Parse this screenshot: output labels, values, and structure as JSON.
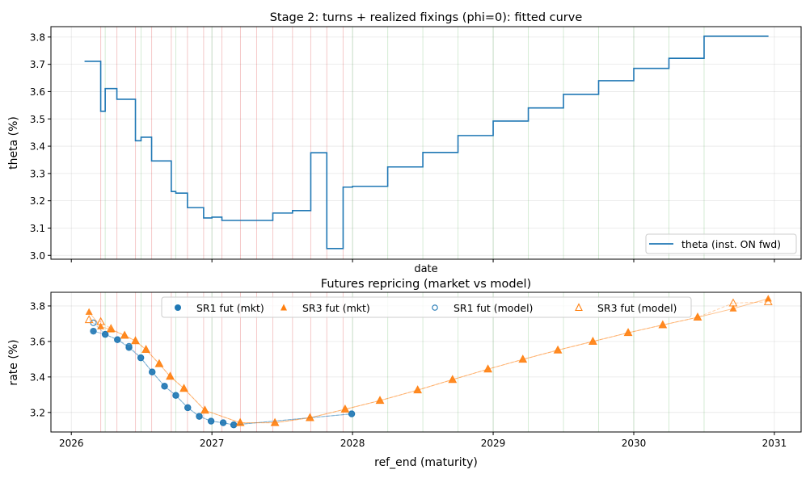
{
  "chart_data": [
    {
      "type": "line",
      "title": "Stage 2: turns + realized fixings (phi=0): fitted curve",
      "xlabel": "date",
      "ylabel": "theta (%)",
      "xlim": [
        2025.855,
        2031.19
      ],
      "ylim": [
        2.986,
        3.838
      ],
      "x_ticks": [
        "2026",
        "2027",
        "2028",
        "2029",
        "2030",
        "2031"
      ],
      "x_tick_values": [
        2026,
        2027,
        2028,
        2029,
        2030,
        2031
      ],
      "y_ticks": [
        "3.0",
        "3.1",
        "3.2",
        "3.3",
        "3.4",
        "3.5",
        "3.6",
        "3.7",
        "3.8"
      ],
      "y_tick_values": [
        3.0,
        3.1,
        3.2,
        3.3,
        3.4,
        3.5,
        3.6,
        3.7,
        3.8
      ],
      "grid": true,
      "legend_placement": "lower-right",
      "series": [
        {
          "name": "theta (inst. ON fwd)",
          "color": "#1f77b4",
          "step": "post",
          "x": [
            2026.094,
            2026.209,
            2026.241,
            2026.324,
            2026.456,
            2026.496,
            2026.571,
            2026.711,
            2026.743,
            2026.826,
            2026.941,
            2027.0,
            2027.071,
            2027.433,
            2027.573,
            2027.703,
            2027.817,
            2027.933,
            2028.0,
            2028.25,
            2028.5,
            2028.75,
            2029.0,
            2029.25,
            2029.5,
            2029.75,
            2030.0,
            2030.25,
            2030.5,
            2030.958
          ],
          "y": [
            3.711,
            3.528,
            3.611,
            3.572,
            3.42,
            3.433,
            3.346,
            3.234,
            3.228,
            3.175,
            3.137,
            3.14,
            3.128,
            3.155,
            3.164,
            3.376,
            3.025,
            3.25,
            3.253,
            3.324,
            3.377,
            3.439,
            3.492,
            3.54,
            3.59,
            3.64,
            3.685,
            3.722,
            3.803,
            3.803
          ]
        }
      ]
    },
    {
      "type": "scatter",
      "title": "Futures repricing (market vs model)",
      "xlabel": "ref_end (maturity)",
      "ylabel": "rate (%)",
      "xlim": [
        2025.855,
        2031.19
      ],
      "ylim": [
        3.09,
        3.877
      ],
      "x_ticks": [
        "2026",
        "2027",
        "2028",
        "2029",
        "2030",
        "2031"
      ],
      "x_tick_values": [
        2026,
        2027,
        2028,
        2029,
        2030,
        2031
      ],
      "y_ticks": [
        "3.2",
        "3.4",
        "3.6",
        "3.8"
      ],
      "y_tick_values": [
        3.2,
        3.4,
        3.6,
        3.8
      ],
      "grid": true,
      "legend_placement": "upper-center",
      "series": [
        {
          "name": "SR1 fut (mkt)",
          "color": "#1f77b4",
          "marker": "circle-filled",
          "x": [
            2026.157,
            2026.241,
            2026.328,
            2026.41,
            2026.494,
            2026.575,
            2026.663,
            2026.743,
            2026.828,
            2026.91,
            2026.994,
            2027.08,
            2027.155,
            2027.994
          ],
          "y": [
            3.658,
            3.64,
            3.61,
            3.566,
            3.508,
            3.428,
            3.348,
            3.296,
            3.227,
            3.178,
            3.151,
            3.142,
            3.13,
            3.192
          ]
        },
        {
          "name": "SR3 fut (mkt)",
          "color": "#ff7f0e",
          "marker": "triangle-filled",
          "x": [
            2026.126,
            2026.209,
            2026.282,
            2026.379,
            2026.456,
            2026.531,
            2026.625,
            2026.703,
            2026.801,
            2026.95,
            2027.201,
            2027.448,
            2027.697,
            2027.947,
            2028.195,
            2028.463,
            2028.711,
            2028.963,
            2029.211,
            2029.46,
            2029.709,
            2029.96,
            2030.206,
            2030.454,
            2030.707,
            2030.956
          ],
          "y": [
            3.766,
            3.684,
            3.667,
            3.634,
            3.603,
            3.554,
            3.474,
            3.403,
            3.335,
            3.212,
            3.142,
            3.142,
            3.17,
            3.218,
            3.267,
            3.326,
            3.385,
            3.444,
            3.499,
            3.551,
            3.6,
            3.649,
            3.693,
            3.736,
            3.785,
            3.841
          ]
        },
        {
          "name": "SR1 fut (model)",
          "color": "#1f77b4",
          "marker": "circle-open",
          "x": [
            2026.157,
            2026.241,
            2026.328,
            2026.41,
            2026.494,
            2026.575,
            2026.663,
            2026.743,
            2026.828,
            2026.91,
            2026.994,
            2027.08,
            2027.155,
            2027.994
          ],
          "y": [
            3.705,
            3.64,
            3.61,
            3.573,
            3.508,
            3.428,
            3.348,
            3.296,
            3.227,
            3.178,
            3.151,
            3.142,
            3.13,
            3.192
          ]
        },
        {
          "name": "SR3 fut (model)",
          "color": "#ff7f0e",
          "marker": "triangle-open",
          "x": [
            2026.126,
            2026.209,
            2026.282,
            2026.379,
            2026.456,
            2026.531,
            2026.625,
            2026.703,
            2026.801,
            2026.95,
            2027.201,
            2027.448,
            2027.697,
            2027.947,
            2028.195,
            2028.463,
            2028.711,
            2028.963,
            2029.211,
            2029.46,
            2029.709,
            2029.96,
            2030.206,
            2030.454,
            2030.707,
            2030.956
          ],
          "y": [
            3.722,
            3.711,
            3.672,
            3.634,
            3.603,
            3.554,
            3.474,
            3.403,
            3.335,
            3.212,
            3.142,
            3.142,
            3.17,
            3.218,
            3.267,
            3.326,
            3.385,
            3.444,
            3.499,
            3.551,
            3.6,
            3.649,
            3.693,
            3.736,
            3.816,
            3.823
          ]
        }
      ]
    }
  ],
  "vertical_lines": {
    "red": {
      "color": "#d62728",
      "x": [
        2026.209,
        2026.324,
        2026.456,
        2026.571,
        2026.711,
        2026.826,
        2026.941,
        2027.071,
        2027.203,
        2027.318,
        2027.433,
        2027.573,
        2027.703,
        2027.817,
        2027.933
      ]
    },
    "green": {
      "color": "#2ca02c",
      "x": [
        2026.241,
        2026.496,
        2026.743,
        2027.0,
        2028.0,
        2028.25,
        2028.5,
        2028.75,
        2029.0,
        2029.25,
        2029.5,
        2029.75,
        2030.0,
        2030.25,
        2030.5
      ]
    }
  }
}
